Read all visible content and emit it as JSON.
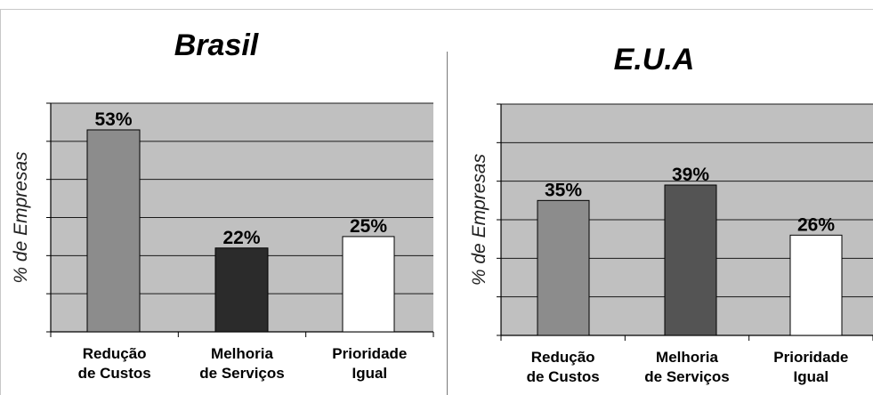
{
  "chart_data": [
    {
      "type": "bar",
      "title": "Brasil",
      "ylabel": "% de Empresas",
      "categories": [
        "Redução de Custos",
        "Melhoria de Serviços",
        "Prioridade Igual"
      ],
      "category_lines": [
        [
          "Redução",
          "de Custos"
        ],
        [
          "Melhoria",
          "de Serviços"
        ],
        [
          "Prioridade",
          "Igual"
        ]
      ],
      "values": [
        53,
        22,
        25
      ],
      "value_labels": [
        "53%",
        "22%",
        "25%"
      ],
      "bar_colors": [
        "#8c8c8c",
        "#2b2b2b",
        "#ffffff"
      ],
      "ylim": [
        0,
        60
      ],
      "grid": true,
      "legend": "none"
    },
    {
      "type": "bar",
      "title": "E.U.A",
      "ylabel": "% de Empresas",
      "categories": [
        "Redução de Custos",
        "Melhoria de Serviços",
        "Prioridade Igual"
      ],
      "category_lines": [
        [
          "Redução",
          "de Custos"
        ],
        [
          "Melhoria",
          "de Serviços"
        ],
        [
          "Prioridade",
          "Igual"
        ]
      ],
      "values": [
        35,
        39,
        26
      ],
      "value_labels": [
        "35%",
        "39%",
        "26%"
      ],
      "bar_colors": [
        "#8c8c8c",
        "#545454",
        "#ffffff"
      ],
      "ylim": [
        0,
        60
      ],
      "grid": true,
      "legend": "none"
    }
  ],
  "colors": {
    "plot_background": "#c0c0c0",
    "gridline": "#1a1a1a",
    "bar_border": "#000000"
  }
}
